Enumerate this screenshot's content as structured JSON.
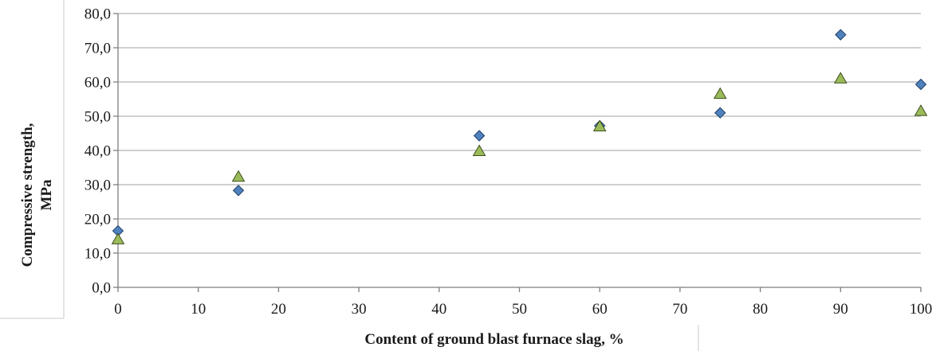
{
  "chart_data": {
    "type": "scatter",
    "xlabel": "Content of ground blast furnace slag, %",
    "ylabel_lines": [
      "Compressive strength,",
      "MPa"
    ],
    "xlim": [
      0,
      100
    ],
    "ylim": [
      0,
      80
    ],
    "x_ticks": [
      "0",
      "10",
      "20",
      "30",
      "40",
      "50",
      "60",
      "70",
      "80",
      "90",
      "100"
    ],
    "y_ticks": [
      "0,0",
      "10,0",
      "20,0",
      "30,0",
      "40,0",
      "50,0",
      "60,0",
      "70,0",
      "80,0"
    ],
    "grid": true,
    "series": [
      {
        "marker": "diamond",
        "color": "#4f81bd",
        "edge_color": "#1f3f66",
        "points": [
          {
            "x": 0,
            "y": 16.5
          },
          {
            "x": 15,
            "y": 28.3
          },
          {
            "x": 45,
            "y": 44.3
          },
          {
            "x": 60,
            "y": 47.2
          },
          {
            "x": 75,
            "y": 51.0
          },
          {
            "x": 90,
            "y": 73.8
          },
          {
            "x": 100,
            "y": 59.3
          }
        ]
      },
      {
        "marker": "triangle",
        "color": "#9bbb59",
        "edge_color": "#3d4f1e",
        "points": [
          {
            "x": 0,
            "y": 14.0
          },
          {
            "x": 15,
            "y": 32.3
          },
          {
            "x": 45,
            "y": 39.8
          },
          {
            "x": 60,
            "y": 47.0
          },
          {
            "x": 75,
            "y": 56.5
          },
          {
            "x": 90,
            "y": 61.0
          },
          {
            "x": 100,
            "y": 51.5
          }
        ]
      }
    ]
  }
}
